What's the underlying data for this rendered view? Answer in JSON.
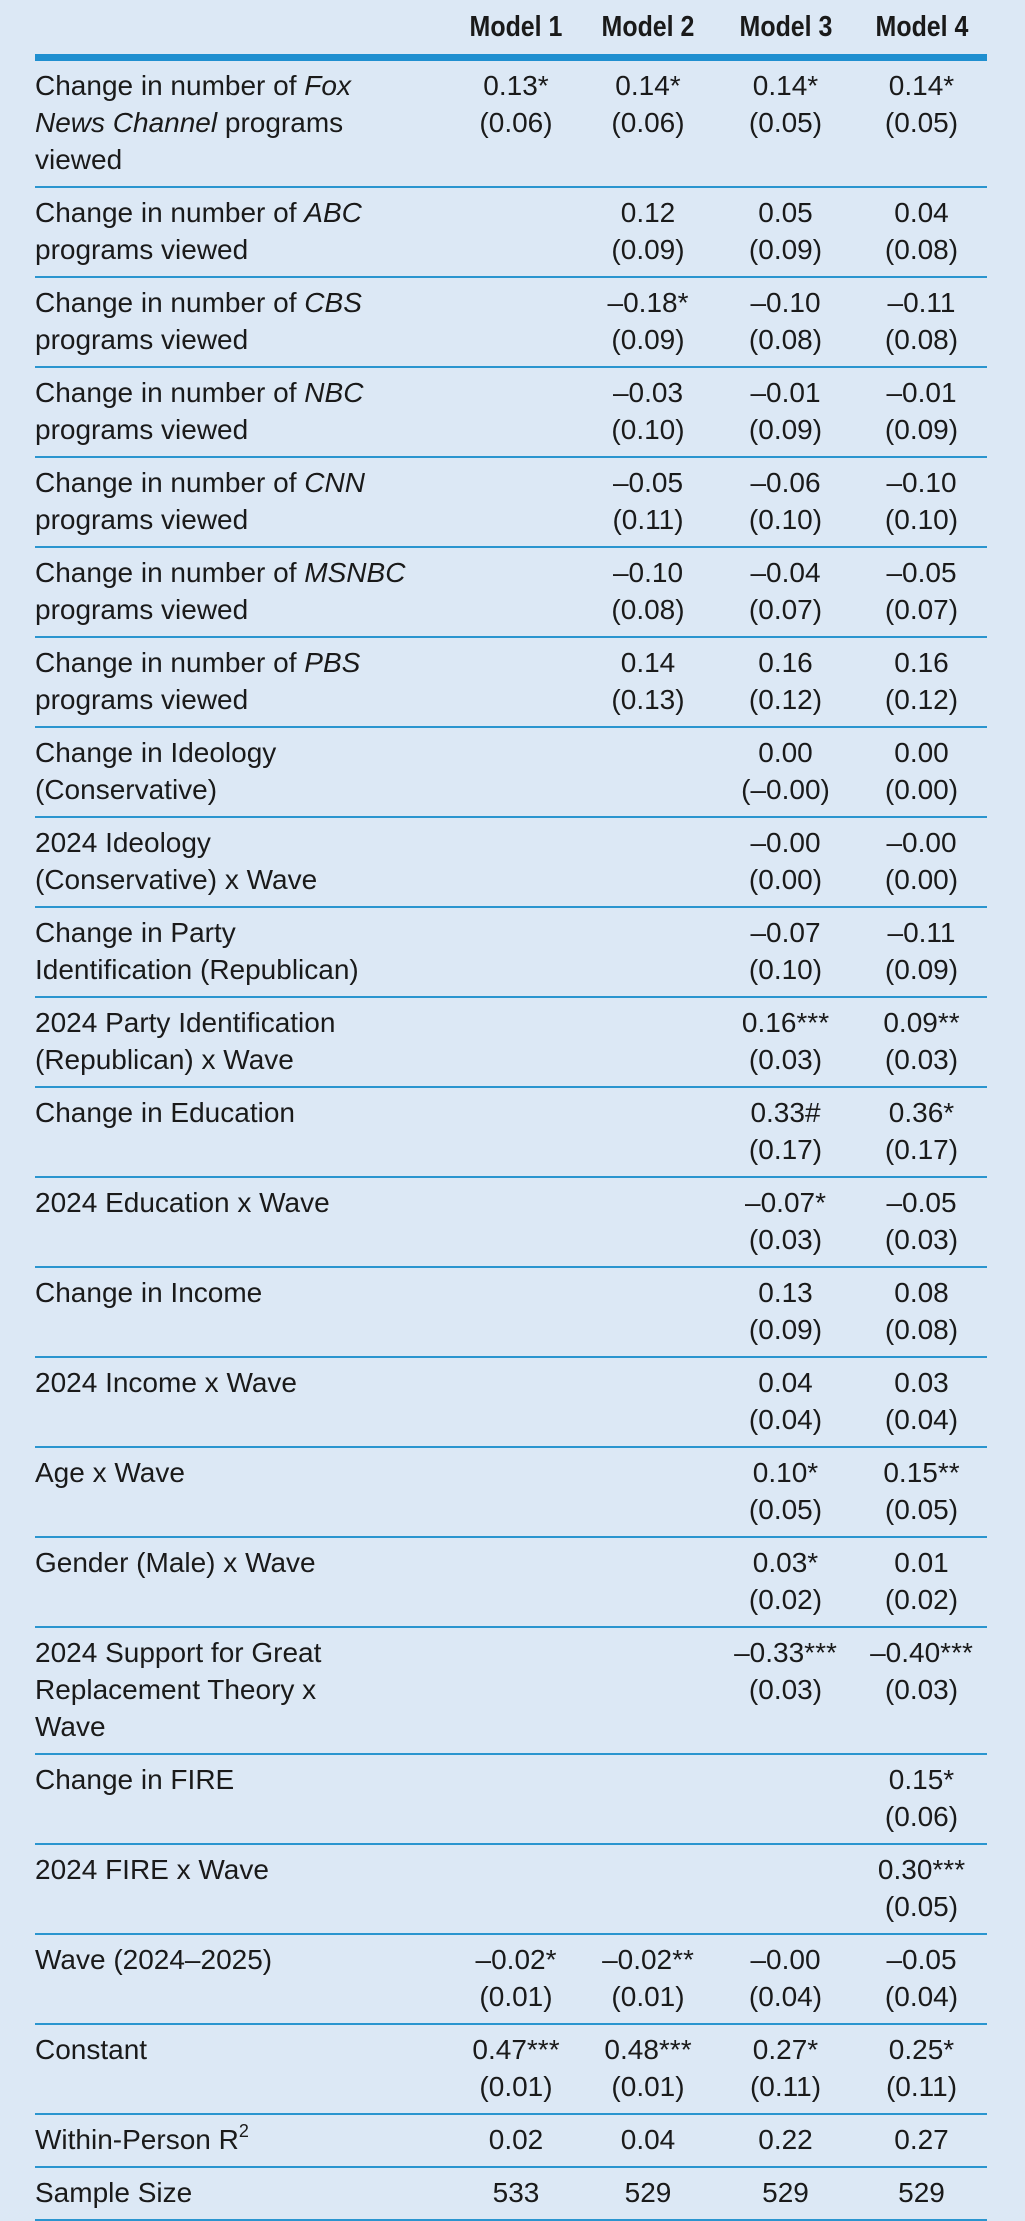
{
  "table": {
    "columns": [
      "Model 1",
      "Model 2",
      "Model 3",
      "Model 4"
    ],
    "rows": [
      {
        "label": [
          [
            "Change in number of",
            {
              "italic": "Fox"
            }
          ],
          [
            {
              "italic": "News Channel"
            },
            "programs"
          ],
          [
            "viewed"
          ]
        ],
        "cells": [
          [
            "0.13*",
            "(0.06)"
          ],
          [
            "0.14*",
            "(0.06)"
          ],
          [
            "0.14*",
            "(0.05)"
          ],
          [
            "0.14*",
            "(0.05)"
          ]
        ]
      },
      {
        "label": [
          [
            "Change in number of",
            {
              "italic": "ABC"
            }
          ],
          [
            "programs viewed"
          ]
        ],
        "cells": [
          null,
          [
            "0.12",
            "(0.09)"
          ],
          [
            "0.05",
            "(0.09)"
          ],
          [
            "0.04",
            "(0.08)"
          ]
        ]
      },
      {
        "label": [
          [
            "Change in number of",
            {
              "italic": "CBS"
            }
          ],
          [
            "programs viewed"
          ]
        ],
        "cells": [
          null,
          [
            "–0.18*",
            "(0.09)"
          ],
          [
            "–0.10",
            "(0.08)"
          ],
          [
            "–0.11",
            "(0.08)"
          ]
        ]
      },
      {
        "label": [
          [
            "Change in number of",
            {
              "italic": "NBC"
            }
          ],
          [
            "programs viewed"
          ]
        ],
        "cells": [
          null,
          [
            "–0.03",
            "(0.10)"
          ],
          [
            "–0.01",
            "(0.09)"
          ],
          [
            "–0.01",
            "(0.09)"
          ]
        ]
      },
      {
        "label": [
          [
            "Change in number of",
            {
              "italic": "CNN"
            }
          ],
          [
            "programs viewed"
          ]
        ],
        "cells": [
          null,
          [
            "–0.05",
            "(0.11)"
          ],
          [
            "–0.06",
            "(0.10)"
          ],
          [
            "–0.10",
            "(0.10)"
          ]
        ]
      },
      {
        "label": [
          [
            "Change in number of",
            {
              "italic": "MSNBC"
            }
          ],
          [
            "programs viewed"
          ]
        ],
        "cells": [
          null,
          [
            "–0.10",
            "(0.08)"
          ],
          [
            "–0.04",
            "(0.07)"
          ],
          [
            "–0.05",
            "(0.07)"
          ]
        ]
      },
      {
        "label": [
          [
            "Change in number of",
            {
              "italic": "PBS"
            }
          ],
          [
            "programs viewed"
          ]
        ],
        "cells": [
          null,
          [
            "0.14",
            "(0.13)"
          ],
          [
            "0.16",
            "(0.12)"
          ],
          [
            "0.16",
            "(0.12)"
          ]
        ]
      },
      {
        "label": [
          [
            "Change in Ideology"
          ],
          [
            "(Conservative)"
          ]
        ],
        "cells": [
          null,
          null,
          [
            "0.00",
            "(–0.00)"
          ],
          [
            "0.00",
            "(0.00)"
          ]
        ]
      },
      {
        "label": [
          [
            "2024 Ideology"
          ],
          [
            "(Conservative) x Wave"
          ]
        ],
        "cells": [
          null,
          null,
          [
            "–0.00",
            "(0.00)"
          ],
          [
            "–0.00",
            "(0.00)"
          ]
        ]
      },
      {
        "label": [
          [
            "Change in Party"
          ],
          [
            "Identification (Republican)"
          ]
        ],
        "cells": [
          null,
          null,
          [
            "–0.07",
            "(0.10)"
          ],
          [
            "–0.11",
            "(0.09)"
          ]
        ]
      },
      {
        "label": [
          [
            "2024 Party Identification"
          ],
          [
            "(Republican) x Wave"
          ]
        ],
        "cells": [
          null,
          null,
          [
            "0.16***",
            "(0.03)"
          ],
          [
            "0.09**",
            "(0.03)"
          ]
        ]
      },
      {
        "label": [
          [
            "Change in Education"
          ]
        ],
        "cells": [
          null,
          null,
          [
            "0.33#",
            "(0.17)"
          ],
          [
            "0.36*",
            "(0.17)"
          ]
        ]
      },
      {
        "label": [
          [
            "2024 Education x Wave"
          ]
        ],
        "cells": [
          null,
          null,
          [
            "–0.07*",
            "(0.03)"
          ],
          [
            "–0.05",
            "(0.03)"
          ]
        ]
      },
      {
        "label": [
          [
            "Change in Income"
          ]
        ],
        "cells": [
          null,
          null,
          [
            "0.13",
            "(0.09)"
          ],
          [
            "0.08",
            "(0.08)"
          ]
        ]
      },
      {
        "label": [
          [
            "2024 Income x Wave"
          ]
        ],
        "cells": [
          null,
          null,
          [
            "0.04",
            "(0.04)"
          ],
          [
            "0.03",
            "(0.04)"
          ]
        ]
      },
      {
        "label": [
          [
            "Age x Wave"
          ]
        ],
        "cells": [
          null,
          null,
          [
            "0.10*",
            "(0.05)"
          ],
          [
            "0.15**",
            "(0.05)"
          ]
        ]
      },
      {
        "label": [
          [
            "Gender (Male) x Wave"
          ]
        ],
        "cells": [
          null,
          null,
          [
            "0.03*",
            "(0.02)"
          ],
          [
            "0.01",
            "(0.02)"
          ]
        ]
      },
      {
        "label": [
          [
            "2024 Support for Great"
          ],
          [
            "Replacement Theory x"
          ],
          [
            "Wave"
          ]
        ],
        "cells": [
          null,
          null,
          [
            "–0.33***",
            "(0.03)"
          ],
          [
            "–0.40***",
            "(0.03)"
          ]
        ]
      },
      {
        "label": [
          [
            "Change in FIRE"
          ]
        ],
        "cells": [
          null,
          null,
          null,
          [
            "0.15*",
            "(0.06)"
          ]
        ]
      },
      {
        "label": [
          [
            "2024 FIRE x Wave"
          ]
        ],
        "cells": [
          null,
          null,
          null,
          [
            "0.30***",
            "(0.05)"
          ]
        ]
      },
      {
        "label": [
          [
            "Wave (2024–2025)"
          ]
        ],
        "cells": [
          [
            "–0.02*",
            "(0.01)"
          ],
          [
            "–0.02**",
            "(0.01)"
          ],
          [
            "–0.00",
            "(0.04)"
          ],
          [
            "–0.05",
            "(0.04)"
          ]
        ]
      },
      {
        "label": [
          [
            "Constant"
          ]
        ],
        "cells": [
          [
            "0.47***",
            "(0.01)"
          ],
          [
            "0.48***",
            "(0.01)"
          ],
          [
            "0.27*",
            "(0.11)"
          ],
          [
            "0.25*",
            "(0.11)"
          ]
        ]
      },
      {
        "label": [
          [
            "Within-Person R",
            {
              "sup": "2"
            }
          ]
        ],
        "cells": [
          [
            "0.02"
          ],
          [
            "0.04"
          ],
          [
            "0.22"
          ],
          [
            "0.27"
          ]
        ]
      },
      {
        "label": [
          [
            "Sample Size"
          ]
        ],
        "cells": [
          [
            "533"
          ],
          [
            "529"
          ],
          [
            "529"
          ],
          [
            "529"
          ]
        ]
      }
    ]
  }
}
